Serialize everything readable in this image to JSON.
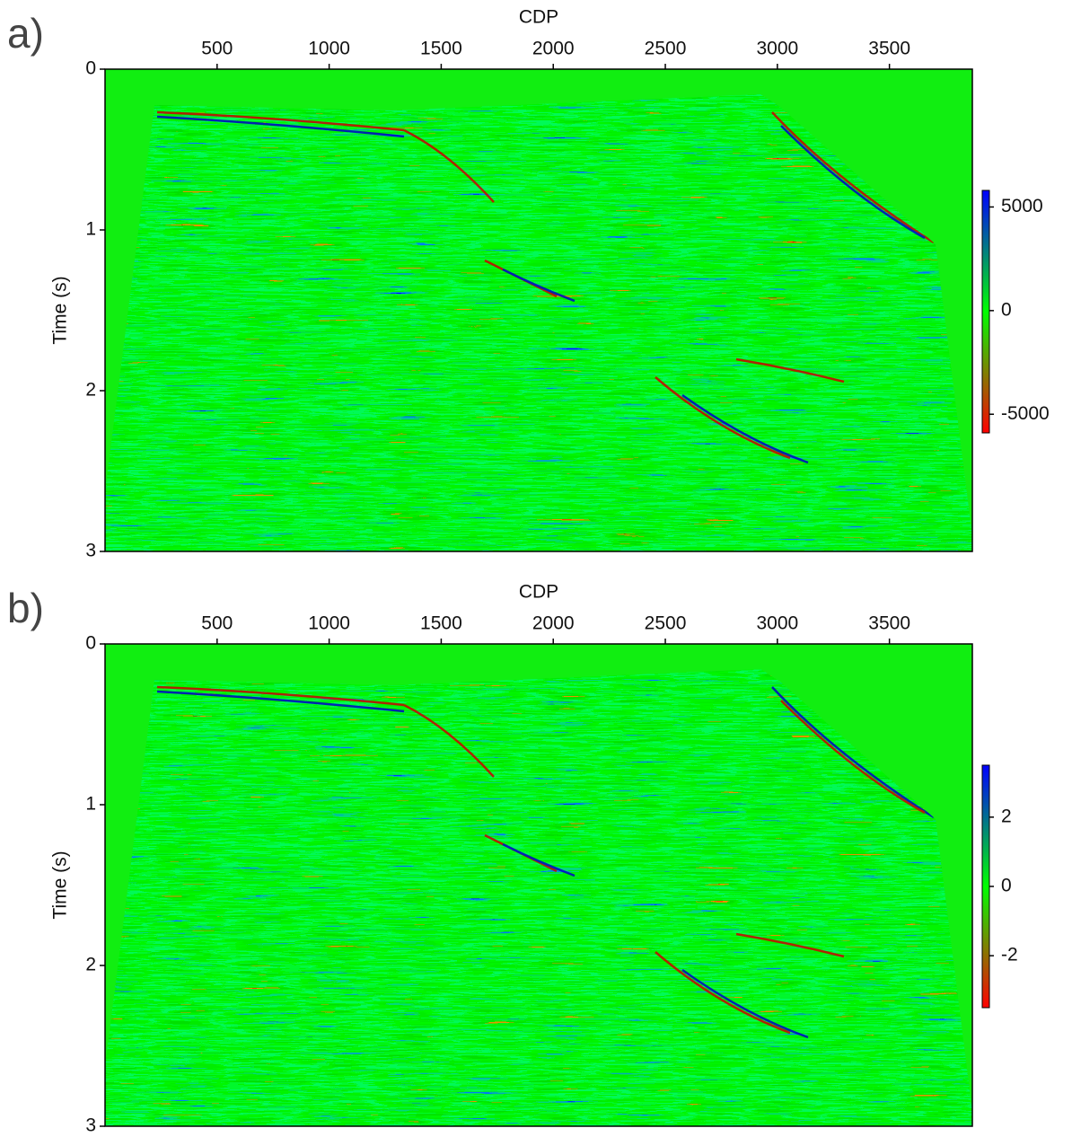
{
  "chart_data": [
    {
      "type": "heatmap",
      "panel_label": "a)",
      "xlabel": "CDP",
      "ylabel": "Time (s)",
      "xlim": [
        0,
        3870
      ],
      "xticks": [
        500,
        1000,
        1500,
        2000,
        2500,
        3000,
        3500
      ],
      "ylim": [
        3,
        0
      ],
      "yticks": [
        0,
        1,
        2,
        3
      ],
      "clim": [
        -5900,
        5800
      ],
      "cticks": [
        5000,
        0,
        -5000
      ],
      "colormap": [
        "#ff0000",
        "#00ff00",
        "#0000ff"
      ]
    },
    {
      "type": "heatmap",
      "panel_label": "b)",
      "xlabel": "CDP",
      "ylabel": "Time (s)",
      "xlim": [
        0,
        3870
      ],
      "xticks": [
        500,
        1000,
        1500,
        2000,
        2500,
        3000,
        3500
      ],
      "ylim": [
        3,
        0
      ],
      "yticks": [
        0,
        1,
        2,
        3
      ],
      "clim": [
        -3.5,
        3.5
      ],
      "cticks": [
        2,
        0,
        -2
      ],
      "colormap": [
        "#ff0000",
        "#00ff00",
        "#0000ff"
      ]
    }
  ]
}
